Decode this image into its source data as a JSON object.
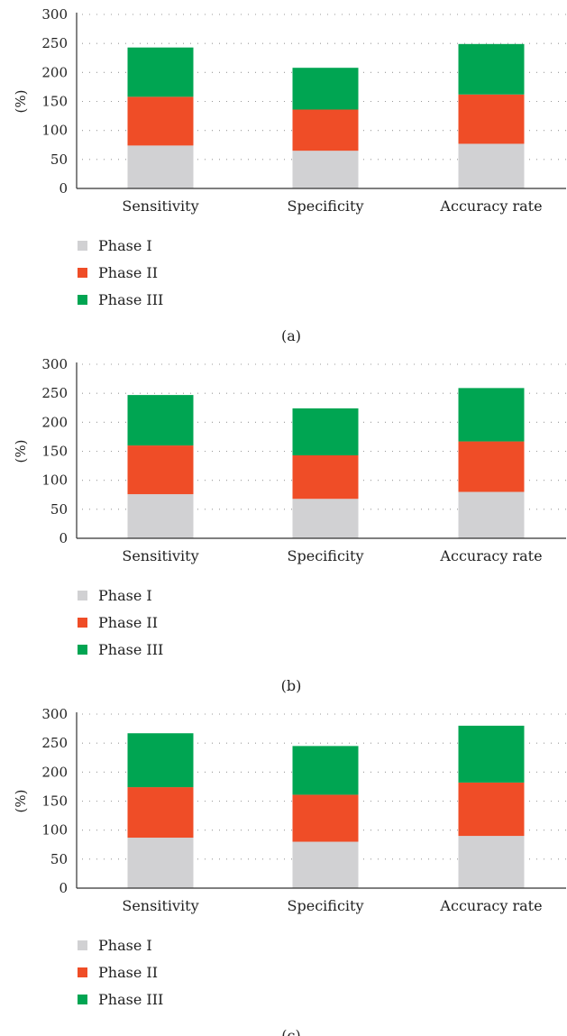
{
  "colors": {
    "phase1": "#d1d1d3",
    "phase2": "#ef4d27",
    "phase3": "#00a552",
    "axis": "#333333",
    "grid": "#9a9a9a"
  },
  "chart_data": [
    {
      "type": "bar",
      "stacked": true,
      "panel_label": "(a)",
      "ylabel": "(%)",
      "ylim": [
        0,
        300
      ],
      "yticks": [
        "0",
        "50",
        "100",
        "150",
        "200",
        "250",
        "300"
      ],
      "categories": [
        "Sensitivity",
        "Specificity",
        "Accuracy rate"
      ],
      "grid": "dotted horizontal",
      "legend_position": "bottom-left",
      "series": [
        {
          "name": "Phase I",
          "color_key": "phase1",
          "values": [
            74,
            65,
            77
          ]
        },
        {
          "name": "Phase II",
          "color_key": "phase2",
          "values": [
            84,
            71,
            85
          ]
        },
        {
          "name": "Phase III",
          "color_key": "phase3",
          "values": [
            85,
            72,
            87
          ]
        }
      ]
    },
    {
      "type": "bar",
      "stacked": true,
      "panel_label": "(b)",
      "ylabel": "(%)",
      "ylim": [
        0,
        300
      ],
      "yticks": [
        "0",
        "50",
        "100",
        "150",
        "200",
        "250",
        "300"
      ],
      "categories": [
        "Sensitivity",
        "Specificity",
        "Accuracy rate"
      ],
      "grid": "dotted horizontal",
      "legend_position": "bottom-left",
      "series": [
        {
          "name": "Phase I",
          "color_key": "phase1",
          "values": [
            76,
            68,
            80
          ]
        },
        {
          "name": "Phase II",
          "color_key": "phase2",
          "values": [
            84,
            75,
            87
          ]
        },
        {
          "name": "Phase III",
          "color_key": "phase3",
          "values": [
            87,
            81,
            92
          ]
        }
      ]
    },
    {
      "type": "bar",
      "stacked": true,
      "panel_label": "(c)",
      "ylabel": "(%)",
      "ylim": [
        0,
        300
      ],
      "yticks": [
        "0",
        "50",
        "100",
        "150",
        "200",
        "250",
        "300"
      ],
      "categories": [
        "Sensitivity",
        "Specificity",
        "Accuracy rate"
      ],
      "grid": "dotted horizontal",
      "legend_position": "bottom-left",
      "series": [
        {
          "name": "Phase I",
          "color_key": "phase1",
          "values": [
            87,
            80,
            90
          ]
        },
        {
          "name": "Phase II",
          "color_key": "phase2",
          "values": [
            87,
            81,
            92
          ]
        },
        {
          "name": "Phase III",
          "color_key": "phase3",
          "values": [
            93,
            84,
            98
          ]
        }
      ]
    }
  ]
}
